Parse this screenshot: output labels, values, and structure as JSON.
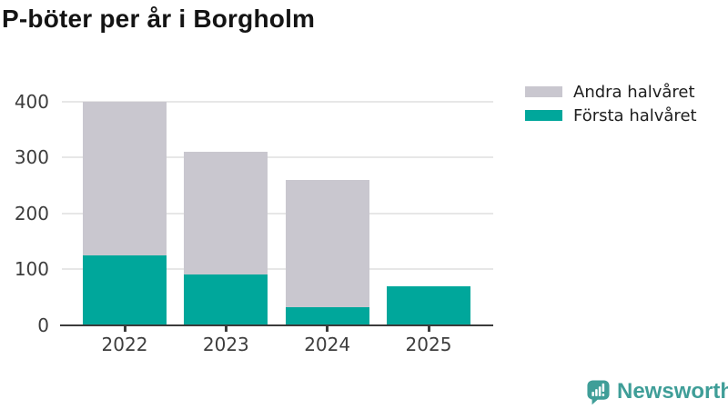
{
  "title": "P-böter per år i Borgholm",
  "legend": {
    "items": [
      {
        "label": "Andra halvåret",
        "color": "#c9c7cf"
      },
      {
        "label": "Första halvåret",
        "color": "#00a79b"
      }
    ]
  },
  "chart_data": {
    "type": "bar",
    "stacked": true,
    "title": "P-böter per år i Borgholm",
    "categories": [
      "2022",
      "2023",
      "2024",
      "2025"
    ],
    "series": [
      {
        "name": "Första halvåret",
        "color": "#00a79b",
        "values": [
          125,
          90,
          31,
          70
        ]
      },
      {
        "name": "Andra halvåret",
        "color": "#c9c7cf",
        "values": [
          275,
          220,
          229,
          0
        ]
      }
    ],
    "totals": [
      400,
      310,
      260,
      70
    ],
    "xlabel": "",
    "ylabel": "",
    "ylim": [
      0,
      400
    ],
    "yticks": [
      0,
      100,
      200,
      300,
      400
    ],
    "grid": true,
    "legend_position": "top-right"
  },
  "footer": {
    "brand": "Newsworthy"
  },
  "colors": {
    "first_half": "#00a79b",
    "second_half": "#c9c7cf",
    "axis": "#3b3b3b",
    "gridline": "#e7e7e7",
    "tick_text": "#3d3d3d",
    "title_text": "#141414",
    "brand_teal": "#3f9e98",
    "background": "#ffffff"
  }
}
